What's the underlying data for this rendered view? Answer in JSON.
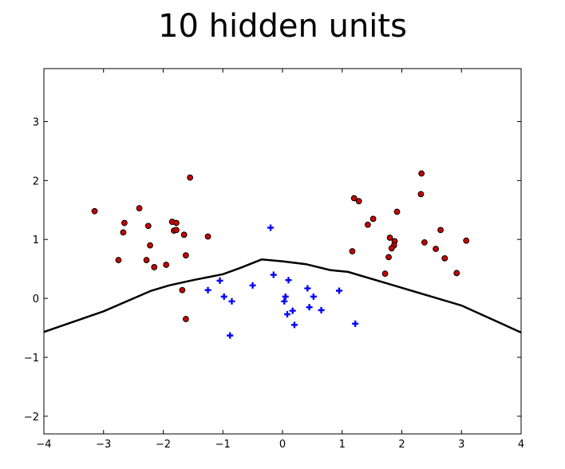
{
  "chart_data": {
    "type": "scatter",
    "title": "10 hidden units",
    "xlabel": "",
    "ylabel": "",
    "xlim": [
      -4,
      4
    ],
    "ylim": [
      -2.3,
      3.9
    ],
    "x_ticks": [
      -4,
      -3,
      -2,
      -1,
      0,
      1,
      2,
      3,
      4
    ],
    "x_tick_labels": [
      "−4",
      "−3",
      "−2",
      "−1",
      "0",
      "1",
      "2",
      "3",
      "4"
    ],
    "y_ticks": [
      -2,
      -1,
      0,
      1,
      2,
      3
    ],
    "y_tick_labels": [
      "−2",
      "−1",
      "0",
      "1",
      "2",
      "3"
    ],
    "grid": false,
    "series": [
      {
        "marker": "circle",
        "color": "#cc0000",
        "points": [
          [
            -3.15,
            1.48
          ],
          [
            -2.65,
            1.28
          ],
          [
            -2.67,
            1.12
          ],
          [
            -2.4,
            1.53
          ],
          [
            -2.25,
            1.23
          ],
          [
            -2.22,
            0.9
          ],
          [
            -2.75,
            0.65
          ],
          [
            -2.28,
            0.65
          ],
          [
            -2.15,
            0.53
          ],
          [
            -1.95,
            0.57
          ],
          [
            -1.85,
            1.3
          ],
          [
            -1.82,
            1.15
          ],
          [
            -1.78,
            1.28
          ],
          [
            -1.78,
            1.16
          ],
          [
            -1.65,
            1.08
          ],
          [
            -1.55,
            2.05
          ],
          [
            -1.62,
            0.73
          ],
          [
            -1.25,
            1.05
          ],
          [
            -1.68,
            0.14
          ],
          [
            -1.62,
            -0.35
          ],
          [
            1.2,
            1.7
          ],
          [
            1.28,
            1.65
          ],
          [
            1.43,
            1.25
          ],
          [
            1.52,
            1.35
          ],
          [
            1.92,
            1.47
          ],
          [
            1.17,
            0.8
          ],
          [
            1.8,
            1.03
          ],
          [
            1.88,
            0.97
          ],
          [
            1.87,
            0.9
          ],
          [
            1.83,
            0.85
          ],
          [
            1.78,
            0.7
          ],
          [
            1.72,
            0.42
          ],
          [
            2.33,
            2.12
          ],
          [
            2.32,
            1.77
          ],
          [
            2.38,
            0.95
          ],
          [
            2.57,
            0.84
          ],
          [
            2.65,
            1.16
          ],
          [
            2.72,
            0.68
          ],
          [
            2.92,
            0.43
          ],
          [
            3.08,
            0.98
          ]
        ]
      },
      {
        "marker": "plus",
        "color": "#0000ff",
        "points": [
          [
            -0.2,
            1.2
          ],
          [
            -1.05,
            0.3
          ],
          [
            -1.25,
            0.14
          ],
          [
            -0.98,
            0.03
          ],
          [
            -0.85,
            -0.05
          ],
          [
            -0.88,
            -0.63
          ],
          [
            -0.5,
            0.22
          ],
          [
            -0.15,
            0.4
          ],
          [
            0.1,
            0.31
          ],
          [
            0.05,
            0.03
          ],
          [
            0.03,
            -0.05
          ],
          [
            0.08,
            -0.27
          ],
          [
            0.17,
            -0.21
          ],
          [
            0.2,
            -0.45
          ],
          [
            0.42,
            0.17
          ],
          [
            0.45,
            -0.15
          ],
          [
            0.52,
            0.03
          ],
          [
            0.65,
            -0.2
          ],
          [
            0.95,
            0.13
          ],
          [
            1.22,
            -0.43
          ]
        ]
      }
    ],
    "decision_boundary": {
      "color": "#000000",
      "points": [
        [
          -4.0,
          -0.57
        ],
        [
          -3.0,
          -0.22
        ],
        [
          -2.2,
          0.13
        ],
        [
          -1.9,
          0.22
        ],
        [
          -1.5,
          0.31
        ],
        [
          -1.0,
          0.41
        ],
        [
          -0.7,
          0.52
        ],
        [
          -0.35,
          0.66
        ],
        [
          0.0,
          0.63
        ],
        [
          0.4,
          0.58
        ],
        [
          0.8,
          0.48
        ],
        [
          1.1,
          0.45
        ],
        [
          2.0,
          0.18
        ],
        [
          3.0,
          -0.12
        ],
        [
          4.0,
          -0.58
        ]
      ]
    }
  }
}
